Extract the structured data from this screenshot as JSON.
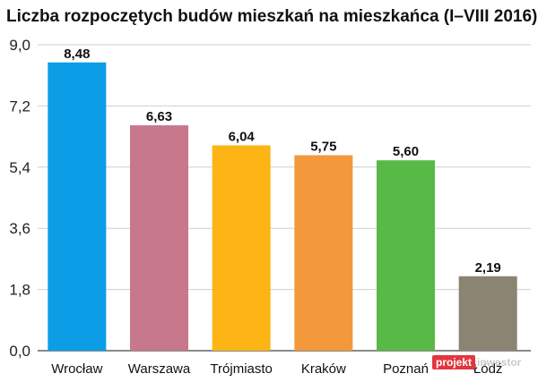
{
  "chart_data": {
    "type": "bar",
    "title": "Liczba rozpoczętych budów mieszkań na mieszkańca (I–VIII 2016)",
    "categories": [
      "Wrocław",
      "Warszawa",
      "Trójmiasto",
      "Kraków",
      "Poznań",
      "Łódź"
    ],
    "values": [
      8.48,
      6.63,
      6.04,
      5.75,
      5.6,
      2.19
    ],
    "value_labels": [
      "8,48",
      "6,63",
      "6,04",
      "5,75",
      "5,60",
      "2,19"
    ],
    "bar_colors": [
      "#0b9ee6",
      "#c8788c",
      "#fdb515",
      "#f3993c",
      "#58b947",
      "#8b8472"
    ],
    "yticks": [
      0.0,
      1.8,
      3.6,
      5.4,
      7.2,
      9.0
    ],
    "ytick_labels": [
      "0,0",
      "1,8",
      "3,6",
      "5,4",
      "7,2",
      "9,0"
    ],
    "ylim": [
      0,
      9.0
    ],
    "xlabel": "",
    "ylabel": "",
    "grid": "horizontal"
  },
  "watermark": {
    "left": "projekt",
    "right": "inwestor",
    "left_bg": "#e3363f"
  }
}
